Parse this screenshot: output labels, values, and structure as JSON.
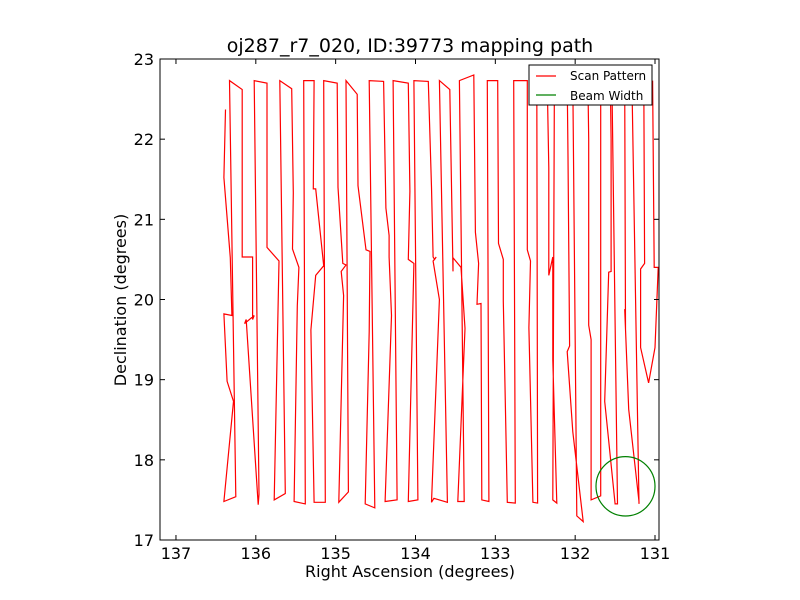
{
  "chart_data": {
    "type": "line",
    "title": "oj287_r7_020, ID:39773 mapping path",
    "xlabel": "Right Ascension (degrees)",
    "ylabel": "Declination (degrees)",
    "xlim": [
      137.2,
      130.95
    ],
    "ylim": [
      17,
      23
    ],
    "x_ticks": [
      137,
      136,
      135,
      134,
      133,
      132,
      131
    ],
    "y_ticks": [
      17,
      18,
      19,
      20,
      21,
      22,
      23
    ],
    "x_tick_labels": [
      "137",
      "136",
      "135",
      "134",
      "133",
      "132",
      "131"
    ],
    "y_tick_labels": [
      "17",
      "18",
      "19",
      "20",
      "21",
      "22",
      "23"
    ],
    "grid": false,
    "legend_position": "top-right",
    "colors": {
      "scan": "#ff0000",
      "beam": "#008000"
    },
    "series": [
      {
        "name": "Scan Pattern",
        "kind": "line",
        "points": [
          [
            136.38,
            22.37
          ],
          [
            136.4,
            21.52
          ],
          [
            136.32,
            20.52
          ],
          [
            136.3,
            19.8
          ],
          [
            136.4,
            19.82
          ],
          [
            136.36,
            18.98
          ],
          [
            136.28,
            18.73
          ],
          [
            136.4,
            17.48
          ],
          [
            136.25,
            17.54
          ],
          [
            136.33,
            22.73
          ],
          [
            136.17,
            22.62
          ],
          [
            136.17,
            20.53
          ],
          [
            136.04,
            20.53
          ],
          [
            136.04,
            19.75
          ],
          [
            136.02,
            19.8
          ],
          [
            136.14,
            19.7
          ],
          [
            136.12,
            19.75
          ],
          [
            136.07,
            18.98
          ],
          [
            135.97,
            17.44
          ],
          [
            135.96,
            17.57
          ],
          [
            136.02,
            22.73
          ],
          [
            135.86,
            22.7
          ],
          [
            135.86,
            20.65
          ],
          [
            135.71,
            20.48
          ],
          [
            135.77,
            17.5
          ],
          [
            135.63,
            17.58
          ],
          [
            135.7,
            22.73
          ],
          [
            135.55,
            22.63
          ],
          [
            135.53,
            21.33
          ],
          [
            135.54,
            20.63
          ],
          [
            135.46,
            20.4
          ],
          [
            135.48,
            19.92
          ],
          [
            135.52,
            17.48
          ],
          [
            135.38,
            17.45
          ],
          [
            135.4,
            22.73
          ],
          [
            135.27,
            22.73
          ],
          [
            135.28,
            21.38
          ],
          [
            135.25,
            21.38
          ],
          [
            135.15,
            20.42
          ],
          [
            135.25,
            20.3
          ],
          [
            135.31,
            19.62
          ],
          [
            135.27,
            17.47
          ],
          [
            135.13,
            17.47
          ],
          [
            135.15,
            22.73
          ],
          [
            134.98,
            22.7
          ],
          [
            134.97,
            21.4
          ],
          [
            134.91,
            20.45
          ],
          [
            134.87,
            20.43
          ],
          [
            134.93,
            20.35
          ],
          [
            134.9,
            20.05
          ],
          [
            134.96,
            17.47
          ],
          [
            134.84,
            17.6
          ],
          [
            134.87,
            22.73
          ],
          [
            134.73,
            22.56
          ],
          [
            134.72,
            21.42
          ],
          [
            134.62,
            20.62
          ],
          [
            134.57,
            20.6
          ],
          [
            134.58,
            19.6
          ],
          [
            134.63,
            17.45
          ],
          [
            134.51,
            17.4
          ],
          [
            134.58,
            22.73
          ],
          [
            134.4,
            22.72
          ],
          [
            134.37,
            21.14
          ],
          [
            134.33,
            20.8
          ],
          [
            134.33,
            20.53
          ],
          [
            134.3,
            19.8
          ],
          [
            134.38,
            17.48
          ],
          [
            134.23,
            17.5
          ],
          [
            134.28,
            22.73
          ],
          [
            134.09,
            22.7
          ],
          [
            134.07,
            21.35
          ],
          [
            134.09,
            20.5
          ],
          [
            134.02,
            20.45
          ],
          [
            134.09,
            17.48
          ],
          [
            133.97,
            17.5
          ],
          [
            134.02,
            22.73
          ],
          [
            133.84,
            22.72
          ],
          [
            133.8,
            21.4
          ],
          [
            133.78,
            20.53
          ],
          [
            133.76,
            20.5
          ],
          [
            133.74,
            20.53
          ],
          [
            133.78,
            20.48
          ],
          [
            133.7,
            20.0
          ],
          [
            133.8,
            17.47
          ],
          [
            133.77,
            17.52
          ],
          [
            133.6,
            17.47
          ],
          [
            133.7,
            22.73
          ],
          [
            133.57,
            22.62
          ],
          [
            133.53,
            20.35
          ],
          [
            133.53,
            20.52
          ],
          [
            133.43,
            20.4
          ],
          [
            133.38,
            19.64
          ],
          [
            133.47,
            17.48
          ],
          [
            133.39,
            17.48
          ],
          [
            133.45,
            22.73
          ],
          [
            133.27,
            22.8
          ],
          [
            133.25,
            20.84
          ],
          [
            133.21,
            20.45
          ],
          [
            133.23,
            19.94
          ],
          [
            133.18,
            19.95
          ],
          [
            133.17,
            17.5
          ],
          [
            133.08,
            17.48
          ],
          [
            133.1,
            22.73
          ],
          [
            132.97,
            22.73
          ],
          [
            132.96,
            20.7
          ],
          [
            132.9,
            20.5
          ],
          [
            132.9,
            19.98
          ],
          [
            132.85,
            17.47
          ],
          [
            132.75,
            17.46
          ],
          [
            132.77,
            22.73
          ],
          [
            132.6,
            22.73
          ],
          [
            132.6,
            20.62
          ],
          [
            132.56,
            20.48
          ],
          [
            132.58,
            19.65
          ],
          [
            132.53,
            17.47
          ],
          [
            132.47,
            17.46
          ],
          [
            132.48,
            22.73
          ],
          [
            132.35,
            22.73
          ],
          [
            132.33,
            21.64
          ],
          [
            132.33,
            20.3
          ],
          [
            132.28,
            20.53
          ],
          [
            132.28,
            19.25
          ],
          [
            132.23,
            17.46
          ],
          [
            132.28,
            17.5
          ],
          [
            132.26,
            22.73
          ],
          [
            132.1,
            22.73
          ],
          [
            132.09,
            21.78
          ],
          [
            132.07,
            19.42
          ],
          [
            132.1,
            19.35
          ],
          [
            132.03,
            18.35
          ],
          [
            131.9,
            17.23
          ],
          [
            131.98,
            17.3
          ],
          [
            132.03,
            22.73
          ],
          [
            131.84,
            22.73
          ],
          [
            131.83,
            22.0
          ],
          [
            131.83,
            19.68
          ],
          [
            131.8,
            19.5
          ],
          [
            131.8,
            17.5
          ],
          [
            131.68,
            17.55
          ],
          [
            131.68,
            22.73
          ],
          [
            131.56,
            22.73
          ],
          [
            131.55,
            22.0
          ],
          [
            131.55,
            20.35
          ],
          [
            131.58,
            20.34
          ],
          [
            131.63,
            18.73
          ],
          [
            131.5,
            17.45
          ],
          [
            131.47,
            17.45
          ],
          [
            131.54,
            22.73
          ],
          [
            131.38,
            22.73
          ],
          [
            131.37,
            19.63
          ],
          [
            131.38,
            19.88
          ],
          [
            131.33,
            18.63
          ],
          [
            131.2,
            17.48
          ],
          [
            131.2,
            17.45
          ],
          [
            131.29,
            22.73
          ],
          [
            131.14,
            22.73
          ],
          [
            131.13,
            20.45
          ],
          [
            131.18,
            20.38
          ],
          [
            131.18,
            19.4
          ],
          [
            131.08,
            18.96
          ],
          [
            131.0,
            19.4
          ],
          [
            130.96,
            20.4
          ],
          [
            131.01,
            20.4
          ],
          [
            131.03,
            22.73
          ]
        ]
      },
      {
        "name": "Beam Width",
        "kind": "circle",
        "center": [
          131.37,
          17.67
        ],
        "radius": 0.37
      }
    ],
    "legend": [
      "Scan Pattern",
      "Beam Width"
    ]
  }
}
